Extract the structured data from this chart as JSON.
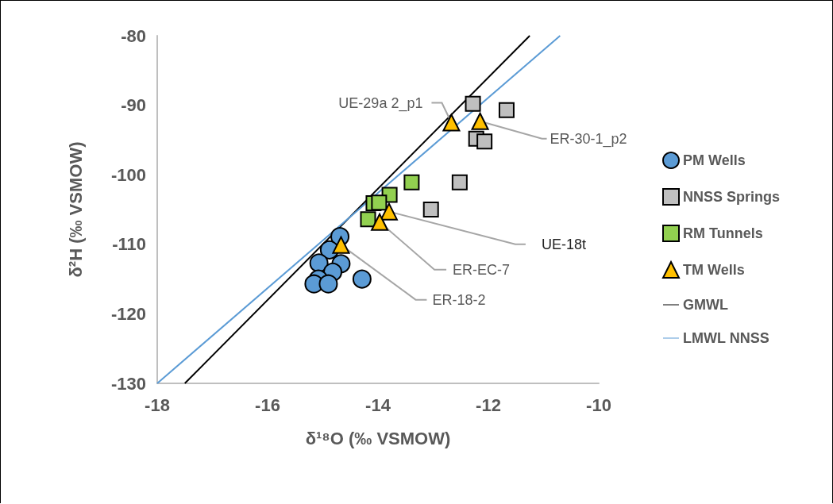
{
  "chart_data": {
    "type": "scatter",
    "xlabel": "δ¹⁸O (‰ VSMOW)",
    "ylabel": "δ²H (‰ VSMOW)",
    "xlim": [
      -18,
      -10
    ],
    "xticks": [
      -18,
      -16,
      -14,
      -12,
      -10
    ],
    "ylim": [
      -130,
      -80
    ],
    "yticks": [
      -130,
      -120,
      -110,
      -100,
      -90,
      -80
    ],
    "grid": false,
    "legend": "right",
    "series": [
      {
        "name": "PM Wells",
        "color": "#5b9bd5",
        "marker": "circle",
        "x": [
          -14.69,
          -14.88,
          -15.07,
          -14.67,
          -14.82,
          -15.08,
          -15.16,
          -14.9,
          -14.29
        ],
        "values": [
          -108.9,
          -110.8,
          -112.7,
          -112.8,
          -114.0,
          -115.0,
          -115.7,
          -115.7,
          -115.0
        ]
      },
      {
        "name": "NNSS Springs",
        "color": "#bfbfbf",
        "marker": "square",
        "x": [
          -12.28,
          -11.67,
          -12.22,
          -12.07,
          -12.52,
          -13.04
        ],
        "values": [
          -89.8,
          -90.7,
          -94.8,
          -95.2,
          -101.1,
          -105.0
        ]
      },
      {
        "name": "RM Tunnels",
        "color": "#92d050",
        "marker": "square",
        "x": [
          -13.39,
          -13.79,
          -14.08,
          -13.98,
          -14.18
        ],
        "values": [
          -101.1,
          -102.9,
          -104.1,
          -104.0,
          -106.4
        ]
      },
      {
        "name": "TM Wells",
        "color": "#ffc000",
        "marker": "triangle",
        "x": [
          -12.67,
          -12.15,
          -13.8,
          -13.97,
          -14.67
        ],
        "values": [
          -92.5,
          -92.3,
          -105.3,
          -106.8,
          -110.1
        ]
      },
      {
        "name": "GMWL",
        "type": "line",
        "color": "#000000",
        "marker": "none",
        "x": [
          -17.5,
          -11.25
        ],
        "values": [
          -130,
          -80
        ]
      },
      {
        "name": "LMWL NNSS",
        "type": "line",
        "color": "#5b9bd5",
        "marker": "none",
        "x": [
          -18,
          -10.7
        ],
        "values": [
          -130,
          -80
        ]
      }
    ],
    "annotations": [
      {
        "text": "UE-29a 2_p1",
        "x": -12.67,
        "y": -92.5
      },
      {
        "text": "ER-30-1_p2",
        "x": -12.15,
        "y": -92.3
      },
      {
        "text": "UE-18t",
        "x": -13.8,
        "y": -105.3
      },
      {
        "text": "ER-EC-7",
        "x": -13.97,
        "y": -106.8
      },
      {
        "text": "ER-18-2",
        "x": -14.67,
        "y": -110.1
      }
    ]
  }
}
